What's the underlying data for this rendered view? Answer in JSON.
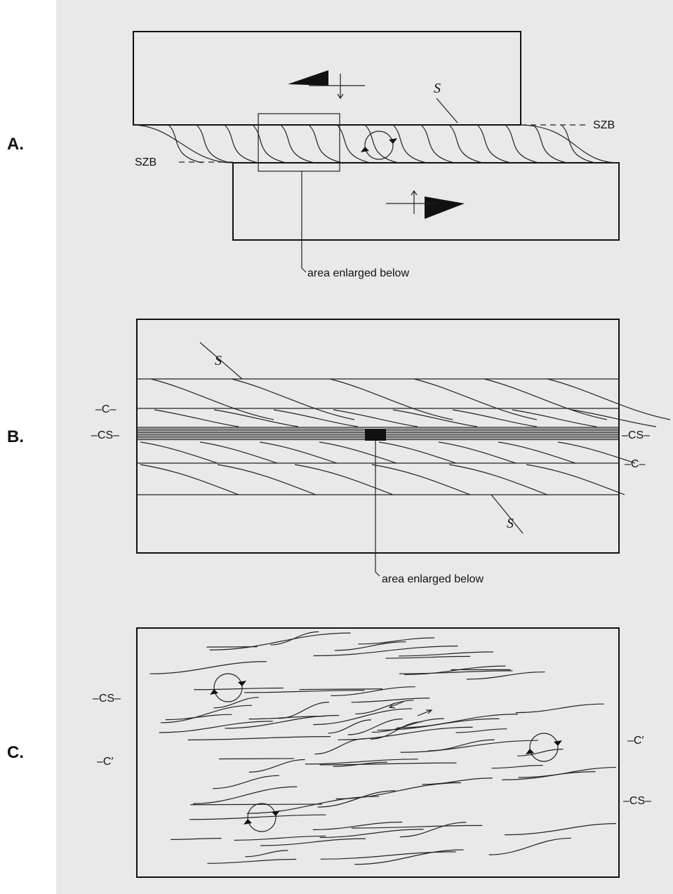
{
  "panel_a": {
    "label": "A.",
    "s": "S",
    "szb_right": "SZB",
    "szb_left": "SZB",
    "callout": "area enlarged below"
  },
  "panel_b": {
    "label": "B.",
    "s_top": "S",
    "s_bottom": "S",
    "c_left": "–C–",
    "cs_left": "–CS–",
    "cs_right": "–CS–",
    "c_right": "–C–",
    "callout": "area enlarged below"
  },
  "panel_c": {
    "label": "C.",
    "cs_left": "–CS–",
    "c_prime_left": "–C′",
    "c_prime_right": "–C′",
    "cs_right": "–CS–"
  }
}
